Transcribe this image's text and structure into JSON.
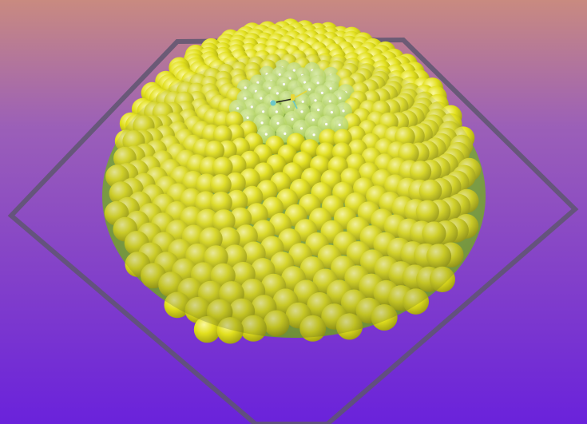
{
  "scene": {
    "background": {
      "top_color": "#C98A80",
      "mid_color": "#9B5FB8",
      "bottom_color": "#6A22DB"
    },
    "floor_outline_color": "#5E5670",
    "dome": {
      "base_color": "#7FA440",
      "sphere_color": "#E2E01E",
      "sphere_highlight": "#FAF7A0",
      "sphere_shadow": "#9A9A10",
      "inner_sphere_color": "#A9CE4A",
      "inner_glow_color": "#E4F5B4",
      "arrangement": "phyllotaxis-spiral"
    },
    "gizmo": {
      "axis_colors": [
        "#E8D838",
        "#222222",
        "#6CC8C8"
      ],
      "icons": [
        "axes-gizmo-icon",
        "light-bulb-icon"
      ]
    }
  }
}
